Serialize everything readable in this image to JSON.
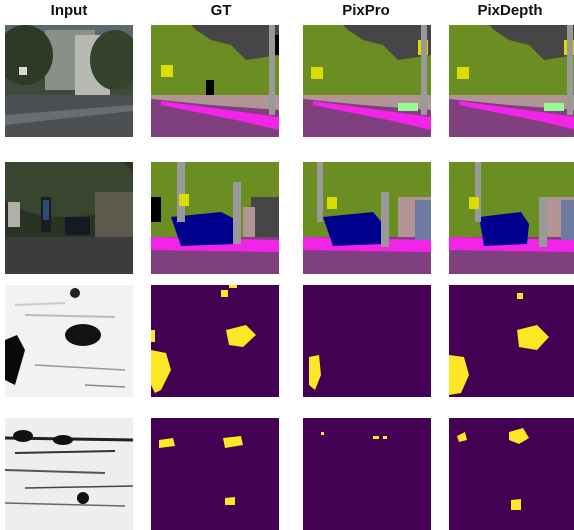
{
  "figure": {
    "columns": [
      "Input",
      "GT",
      "PixPro",
      "PixDepth"
    ],
    "rows": [
      {
        "input": "street-scene-photo",
        "gt": "segmentation-map",
        "pixpro": "segmentation-map",
        "pixdepth": "segmentation-map"
      },
      {
        "input": "street-scene-photo",
        "gt": "segmentation-map",
        "pixpro": "segmentation-map",
        "pixdepth": "segmentation-map"
      },
      {
        "input": "grayscale-texture",
        "gt": "binary-mask",
        "pixpro": "binary-mask",
        "pixdepth": "binary-mask"
      },
      {
        "input": "grayscale-texture",
        "gt": "binary-mask",
        "pixpro": "binary-mask",
        "pixdepth": "binary-mask"
      }
    ]
  },
  "colors": {
    "vegetation": "#6b8e23",
    "building": "#464646",
    "road": "#804080",
    "sidewalk": "#f423e8",
    "car": "#00008e",
    "pole": "#999999",
    "wall": "#b29494",
    "sky": "#4682b4",
    "sign": "#dcdc00",
    "mask_bg": "#440154",
    "mask_fg": "#fde725"
  }
}
